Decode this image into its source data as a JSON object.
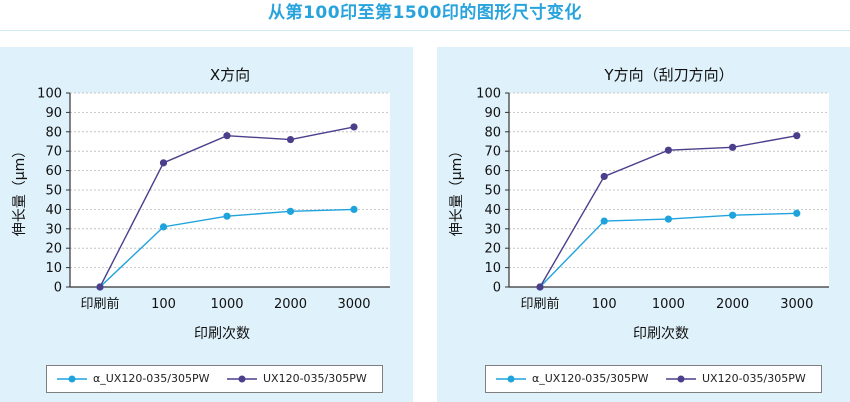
{
  "page": {
    "title": "从第100印至第1500印的图形尺寸变化"
  },
  "colors": {
    "series1": "#1fa3dc",
    "series2": "#4b3f8c",
    "title": "#29a3dc",
    "panel_bg": "#dff1fa"
  },
  "chart_data": [
    {
      "type": "line",
      "title": "X方向",
      "xlabel": "印刷次数",
      "ylabel": "伸长量（μm）",
      "categories": [
        "印刷前",
        "100",
        "1000",
        "2000",
        "3000"
      ],
      "ylim": [
        0,
        100
      ],
      "yticks": [
        0,
        10,
        20,
        30,
        40,
        50,
        60,
        70,
        80,
        90,
        100
      ],
      "grid": true,
      "legend_position": "bottom",
      "series": [
        {
          "name": "α_UX120-035/305PW",
          "values": [
            0,
            31,
            36.5,
            39,
            40
          ],
          "color": "#1fa3dc"
        },
        {
          "name": "UX120-035/305PW",
          "values": [
            0,
            64,
            78,
            76,
            82.5
          ],
          "color": "#4b3f8c"
        }
      ]
    },
    {
      "type": "line",
      "title": "Y方向（刮刀方向）",
      "xlabel": "印刷次数",
      "ylabel": "伸长量（μm）",
      "categories": [
        "印刷前",
        "100",
        "1000",
        "2000",
        "3000"
      ],
      "ylim": [
        0,
        100
      ],
      "yticks": [
        0,
        10,
        20,
        30,
        40,
        50,
        60,
        70,
        80,
        90,
        100
      ],
      "grid": true,
      "legend_position": "bottom",
      "series": [
        {
          "name": "α_UX120-035/305PW",
          "values": [
            0,
            34,
            35,
            37,
            38
          ],
          "color": "#1fa3dc"
        },
        {
          "name": "UX120-035/305PW",
          "values": [
            0,
            57,
            70.5,
            72,
            78
          ],
          "color": "#4b3f8c"
        }
      ]
    }
  ]
}
